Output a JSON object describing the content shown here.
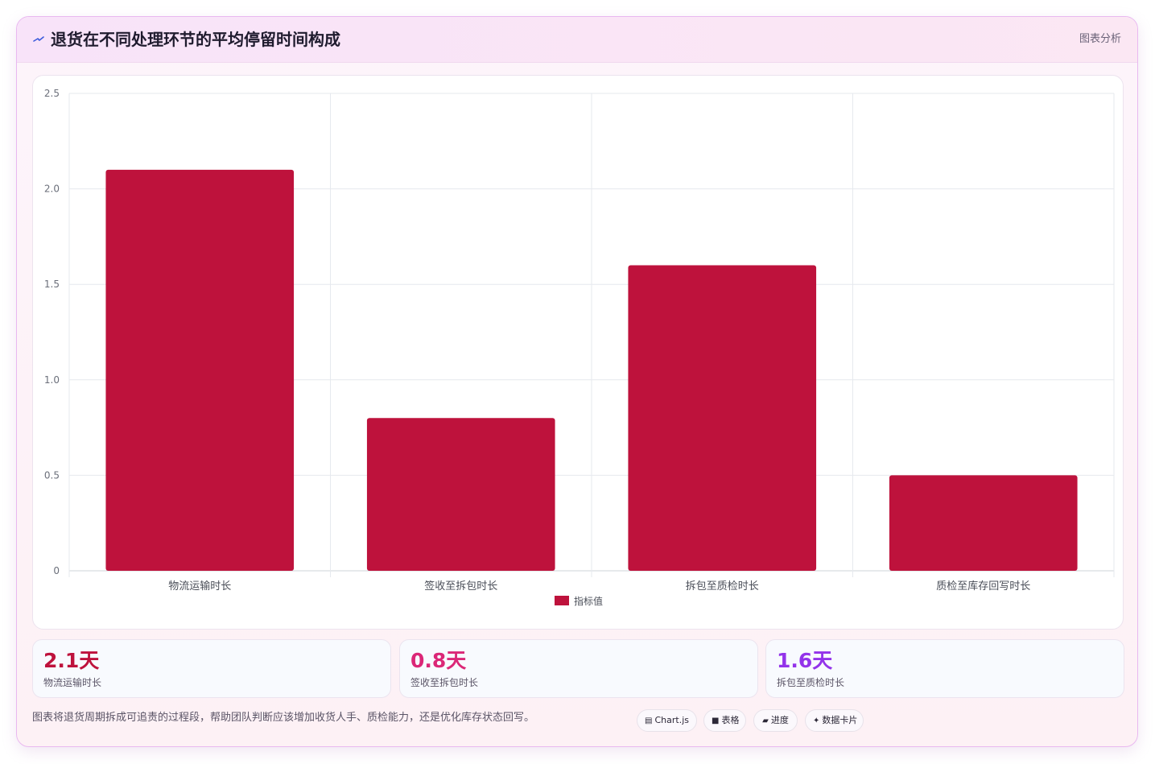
{
  "header": {
    "title": "退货在不同处理环节的平均停留时间构成",
    "tag": "图表分析",
    "logo_icon": "lightning-icon"
  },
  "chart_data": {
    "type": "bar",
    "categories": [
      "物流运输时长",
      "签收至拆包时长",
      "拆包至质检时长",
      "质检至库存回写时长"
    ],
    "series": [
      {
        "name": "指标值",
        "values": [
          2.1,
          0.8,
          1.6,
          0.5
        ],
        "color": "#be123c"
      }
    ],
    "ylim": [
      0,
      2.5
    ],
    "yticks": [
      0,
      0.5,
      1.0,
      1.5,
      2.0,
      2.5
    ],
    "ytick_labels": [
      "0",
      "0.5",
      "1.0",
      "1.5",
      "2.0",
      "2.5"
    ],
    "grid": true,
    "legend": "bottom-center"
  },
  "stats": [
    {
      "value": "2.1天",
      "label": "物流运输时长",
      "color": "#be123c"
    },
    {
      "value": "0.8天",
      "label": "签收至拆包时长",
      "color": "#db2777"
    },
    {
      "value": "1.6天",
      "label": "拆包至质检时长",
      "color": "#9333ea"
    }
  ],
  "footnote": "图表将退货周期拆成可追责的过程段，帮助团队判断应该增加收货人手、质检能力，还是优化库存状态回写。",
  "chips": [
    {
      "icon": "▤",
      "label": "Chart.js",
      "icon_name": "chart-icon"
    },
    {
      "icon": "■",
      "label": "表格",
      "icon_name": "table-icon"
    },
    {
      "icon": "▰",
      "label": "进度",
      "icon_name": "progress-icon"
    },
    {
      "icon": "✦",
      "label": "数据卡片",
      "icon_name": "sparkle-icon"
    }
  ]
}
